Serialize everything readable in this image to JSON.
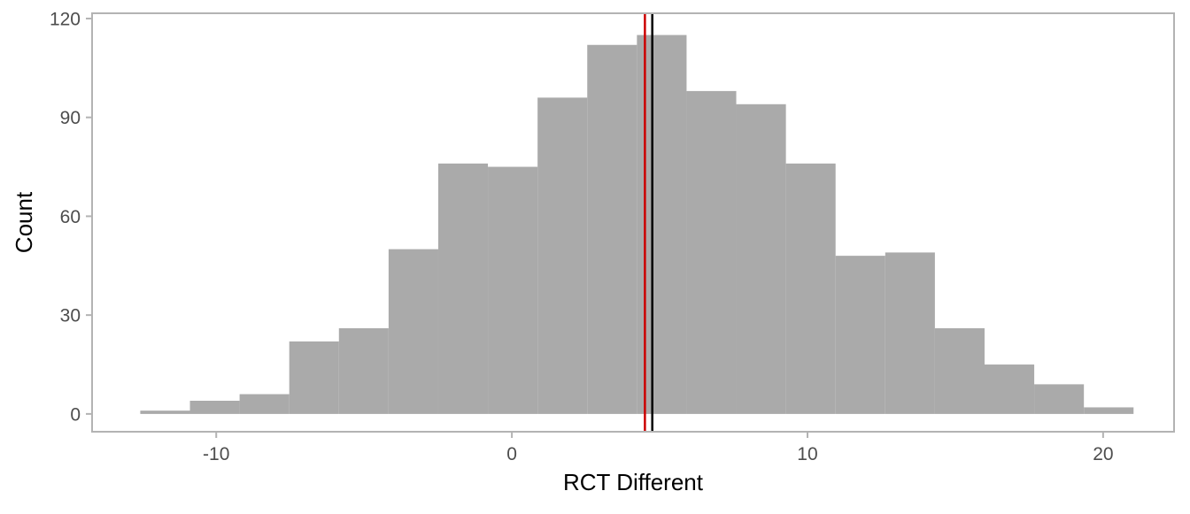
{
  "chart_data": {
    "type": "histogram",
    "title": "",
    "xlabel": "RCT Different",
    "ylabel": "Count",
    "xlim": [
      -14.2,
      22.4
    ],
    "ylim": [
      -5.4,
      121.6
    ],
    "x_ticks": [
      -10,
      0,
      10,
      20
    ],
    "y_ticks": [
      0,
      30,
      60,
      90,
      120
    ],
    "grid": false,
    "bin_width": 1.68,
    "bars": [
      {
        "x0": -12.57,
        "x1": -10.89,
        "count": 1
      },
      {
        "x0": -10.89,
        "x1": -9.21,
        "count": 4
      },
      {
        "x0": -9.21,
        "x1": -7.53,
        "count": 6
      },
      {
        "x0": -7.53,
        "x1": -5.85,
        "count": 22
      },
      {
        "x0": -5.85,
        "x1": -4.17,
        "count": 26
      },
      {
        "x0": -4.17,
        "x1": -2.49,
        "count": 50
      },
      {
        "x0": -2.49,
        "x1": -0.81,
        "count": 76
      },
      {
        "x0": -0.81,
        "x1": 0.87,
        "count": 75
      },
      {
        "x0": 0.87,
        "x1": 2.55,
        "count": 96
      },
      {
        "x0": 2.55,
        "x1": 4.23,
        "count": 112
      },
      {
        "x0": 4.23,
        "x1": 5.91,
        "count": 115
      },
      {
        "x0": 5.91,
        "x1": 7.59,
        "count": 98
      },
      {
        "x0": 7.59,
        "x1": 9.27,
        "count": 94
      },
      {
        "x0": 9.27,
        "x1": 10.95,
        "count": 76
      },
      {
        "x0": 10.95,
        "x1": 12.63,
        "count": 48
      },
      {
        "x0": 12.63,
        "x1": 14.31,
        "count": 49
      },
      {
        "x0": 14.31,
        "x1": 15.99,
        "count": 26
      },
      {
        "x0": 15.99,
        "x1": 17.67,
        "count": 15
      },
      {
        "x0": 17.67,
        "x1": 19.35,
        "count": 9
      },
      {
        "x0": 19.35,
        "x1": 21.03,
        "count": 2
      }
    ],
    "vlines": [
      {
        "x": 4.5,
        "color": "#cc0000"
      },
      {
        "x": 4.75,
        "color": "#000000"
      }
    ],
    "colors": {
      "bar_fill": "#aaaaaa",
      "panel_border": "#b3b3b3",
      "tick_label": "#4d4d4d",
      "axis_title": "#000000"
    }
  }
}
